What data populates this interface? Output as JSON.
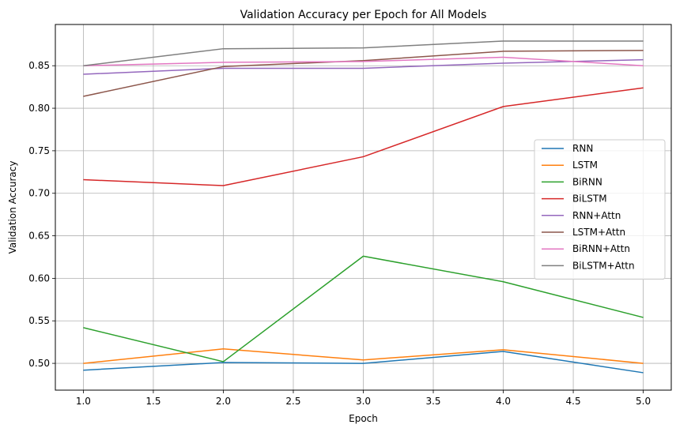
{
  "chart_data": {
    "type": "line",
    "title": "Validation Accuracy per Epoch for All Models",
    "xlabel": "Epoch",
    "ylabel": "Validation Accuracy",
    "xlim": [
      0.8,
      5.2
    ],
    "ylim": [
      0.4685,
      0.8985
    ],
    "x": [
      1.0,
      2.0,
      3.0,
      4.0,
      5.0
    ],
    "xticks": [
      1.0,
      1.5,
      2.0,
      2.5,
      3.0,
      3.5,
      4.0,
      4.5,
      5.0
    ],
    "xtick_labels": [
      "1.0",
      "1.5",
      "2.0",
      "2.5",
      "3.0",
      "3.5",
      "4.0",
      "4.5",
      "5.0"
    ],
    "yticks": [
      0.5,
      0.55,
      0.6,
      0.65,
      0.7,
      0.75,
      0.8,
      0.85
    ],
    "ytick_labels": [
      "0.50",
      "0.55",
      "0.60",
      "0.65",
      "0.70",
      "0.75",
      "0.80",
      "0.85"
    ],
    "grid": true,
    "legend_position": "center-right",
    "series": [
      {
        "name": "RNN",
        "color": "#1f77b4",
        "values": [
          0.492,
          0.501,
          0.5,
          0.514,
          0.489
        ]
      },
      {
        "name": "LSTM",
        "color": "#ff7f0e",
        "values": [
          0.5,
          0.517,
          0.504,
          0.516,
          0.5
        ]
      },
      {
        "name": "BiRNN",
        "color": "#2ca02c",
        "values": [
          0.542,
          0.502,
          0.626,
          0.596,
          0.554
        ]
      },
      {
        "name": "BiLSTM",
        "color": "#d62728",
        "values": [
          0.716,
          0.709,
          0.743,
          0.802,
          0.824
        ]
      },
      {
        "name": "RNN+Attn",
        "color": "#9467bd",
        "values": [
          0.84,
          0.847,
          0.847,
          0.853,
          0.857
        ]
      },
      {
        "name": "LSTM+Attn",
        "color": "#8c564b",
        "values": [
          0.814,
          0.849,
          0.856,
          0.867,
          0.868
        ]
      },
      {
        "name": "BiRNN+Attn",
        "color": "#e377c2",
        "values": [
          0.85,
          0.854,
          0.855,
          0.86,
          0.85
        ]
      },
      {
        "name": "BiLSTM+Attn",
        "color": "#7f7f7f",
        "values": [
          0.85,
          0.87,
          0.871,
          0.879,
          0.879
        ]
      }
    ]
  }
}
